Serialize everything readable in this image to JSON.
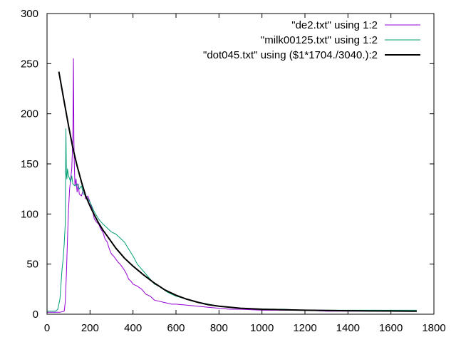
{
  "chart_data": {
    "type": "line",
    "title": "",
    "xlabel": "",
    "ylabel": "",
    "xlim": [
      0,
      1800
    ],
    "ylim": [
      0,
      300
    ],
    "grid": false,
    "legend_position": "top-right",
    "x_ticks": [
      "0",
      "200",
      "400",
      "600",
      "800",
      "1000",
      "1200",
      "1400",
      "1600",
      "1800"
    ],
    "y_ticks": [
      "0",
      "50",
      "100",
      "150",
      "200",
      "250",
      "300"
    ],
    "series": [
      {
        "name": "\"de2.txt\" using 1:2",
        "color": "#9400d3",
        "stroke": 1,
        "x": [
          0,
          40,
          60,
          80,
          85,
          90,
          95,
          100,
          105,
          110,
          115,
          120,
          123,
          125,
          127,
          130,
          135,
          140,
          145,
          150,
          160,
          170,
          180,
          190,
          200,
          210,
          220,
          230,
          240,
          250,
          260,
          270,
          280,
          290,
          300,
          310,
          320,
          330,
          340,
          350,
          360,
          370,
          380,
          390,
          400,
          420,
          440,
          460,
          480,
          500,
          520,
          540,
          560,
          580,
          600,
          650,
          700,
          750,
          800,
          850,
          900,
          1000,
          1100,
          1200,
          1300,
          1400,
          1500,
          1600,
          1700,
          1720
        ],
        "values": [
          2,
          2,
          2,
          3,
          12,
          40,
          75,
          105,
          125,
          135,
          145,
          175,
          255,
          175,
          150,
          128,
          135,
          122,
          130,
          120,
          118,
          125,
          115,
          118,
          112,
          105,
          95,
          92,
          90,
          85,
          82,
          75,
          72,
          65,
          60,
          58,
          55,
          52,
          50,
          47,
          44,
          40,
          35,
          33,
          30,
          28,
          25,
          20,
          18,
          14,
          13,
          12,
          11,
          10,
          10,
          9,
          8,
          7,
          6,
          5,
          5,
          4,
          4,
          4,
          3,
          3,
          3,
          3,
          3,
          3
        ]
      },
      {
        "name": "\"milk00125.txt\" using 1:2",
        "color": "#009e73",
        "stroke": 1,
        "x": [
          0,
          20,
          40,
          50,
          60,
          65,
          70,
          75,
          80,
          85,
          88,
          90,
          92,
          95,
          100,
          105,
          110,
          115,
          120,
          130,
          140,
          150,
          160,
          170,
          180,
          190,
          200,
          220,
          240,
          260,
          280,
          300,
          320,
          340,
          360,
          380,
          400,
          420,
          440,
          460,
          480,
          500,
          520,
          540,
          560,
          580,
          600,
          650,
          700,
          750,
          800,
          850,
          900,
          1000,
          1100,
          1200,
          1300,
          1400,
          1500,
          1600,
          1700,
          1720
        ],
        "values": [
          3,
          3,
          3,
          5,
          15,
          30,
          45,
          55,
          70,
          90,
          185,
          140,
          135,
          145,
          138,
          135,
          132,
          138,
          130,
          128,
          130,
          125,
          128,
          120,
          118,
          115,
          112,
          102,
          95,
          90,
          86,
          82,
          80,
          76,
          72,
          65,
          58,
          50,
          45,
          40,
          35,
          30,
          28,
          25,
          22,
          20,
          18,
          15,
          12,
          10,
          8,
          7,
          6,
          5,
          5,
          4,
          4,
          4,
          4,
          4,
          4,
          4
        ]
      },
      {
        "name": "\"dot045.txt\" using ($1*1704./3040.):2",
        "color": "#000000",
        "stroke": 2,
        "x": [
          55,
          80,
          100,
          120,
          140,
          160,
          180,
          200,
          220,
          240,
          260,
          280,
          300,
          320,
          340,
          360,
          380,
          400,
          450,
          500,
          550,
          600,
          650,
          700,
          750,
          800,
          900,
          1000,
          1100,
          1200,
          1300,
          1400,
          1500,
          1600,
          1700,
          1720
        ],
        "values": [
          242,
          212,
          188,
          166,
          148,
          132,
          118,
          108,
          99,
          91,
          84,
          78,
          72,
          66,
          61,
          56,
          52,
          48,
          39,
          31,
          24,
          19,
          15,
          12,
          9.5,
          8,
          6,
          5,
          4.5,
          4,
          3.8,
          3.5,
          3.3,
          3.2,
          3,
          3
        ]
      }
    ]
  }
}
